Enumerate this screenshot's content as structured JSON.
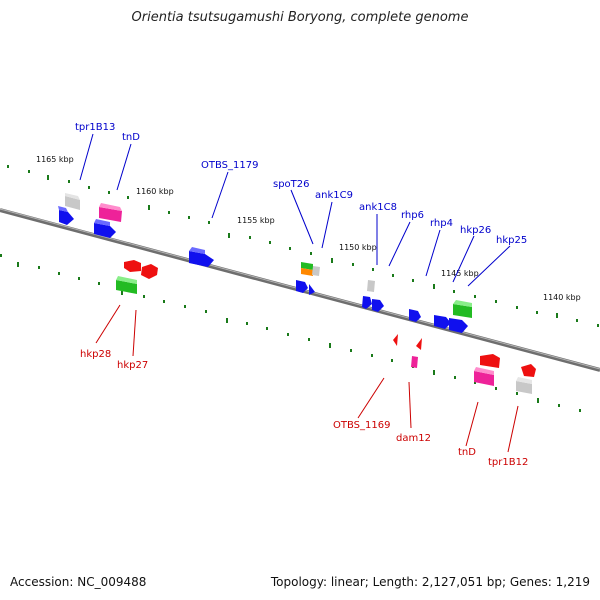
{
  "title": "Orientia tsutsugamushi Boryong, complete genome",
  "footer": {
    "accession": "Accession: NC_009488",
    "topology": "Topology: linear; Length: 2,127,051 bp; Genes: 1,219"
  },
  "colors": {
    "backbone": "#8a8a8a",
    "tick": "#1a7a1a",
    "forward_label": "#0000cc",
    "reverse_label": "#cc0000",
    "blue": "#1010ee",
    "red": "#ee1010",
    "grey": "#bbbbbb",
    "magenta": "#ee2299",
    "green": "#22bb22",
    "orange": "#ff8800"
  },
  "scale_labels": [
    "1165 kbp",
    "1160 kbp",
    "1155 kbp",
    "1150 kbp",
    "1145 kbp",
    "1140 kbp"
  ],
  "forward_labels": [
    "tpr1B13",
    "tnD",
    "OTBS_1179",
    "spoT26",
    "ank1C9",
    "ank1C8",
    "rhp6",
    "rhp4",
    "hkp26",
    "hkp25"
  ],
  "reverse_labels": [
    "hkp28",
    "hkp27",
    "OTBS_1169",
    "dam12",
    "tnD",
    "tpr1B12"
  ]
}
